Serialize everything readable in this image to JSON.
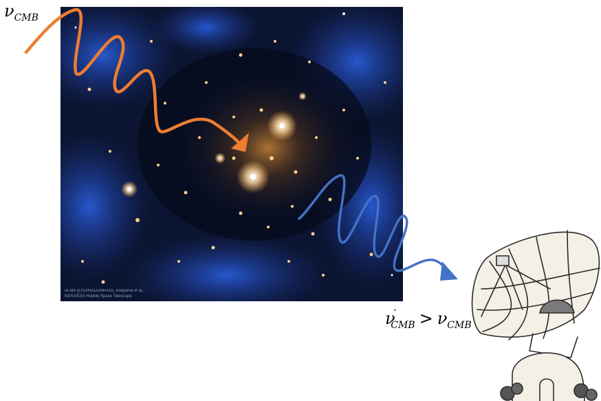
{
  "labels": {
    "incoming_freq": {
      "symbol": "ν",
      "subscript": "CMB"
    },
    "outgoing_relation": {
      "left_symbol": "ν",
      "left_prime": "′",
      "left_subscript": "CMB",
      "operator": ">",
      "right_symbol": "ν",
      "right_subscript": "CMB"
    }
  },
  "image_credit": {
    "line1": "ALMA (ESO/NAOJ/NRAO), Kitayama et al.,",
    "line2": "NASA/ESA Hubble Space Telescope"
  },
  "colors": {
    "incoming_wave": "#ED7D31",
    "outgoing_wave": "#4472C4",
    "space_bg": "#0b1430",
    "cluster_glow": "#d18a3a"
  },
  "icons": [
    "galaxy-cluster-image",
    "radio-telescope-icon"
  ]
}
